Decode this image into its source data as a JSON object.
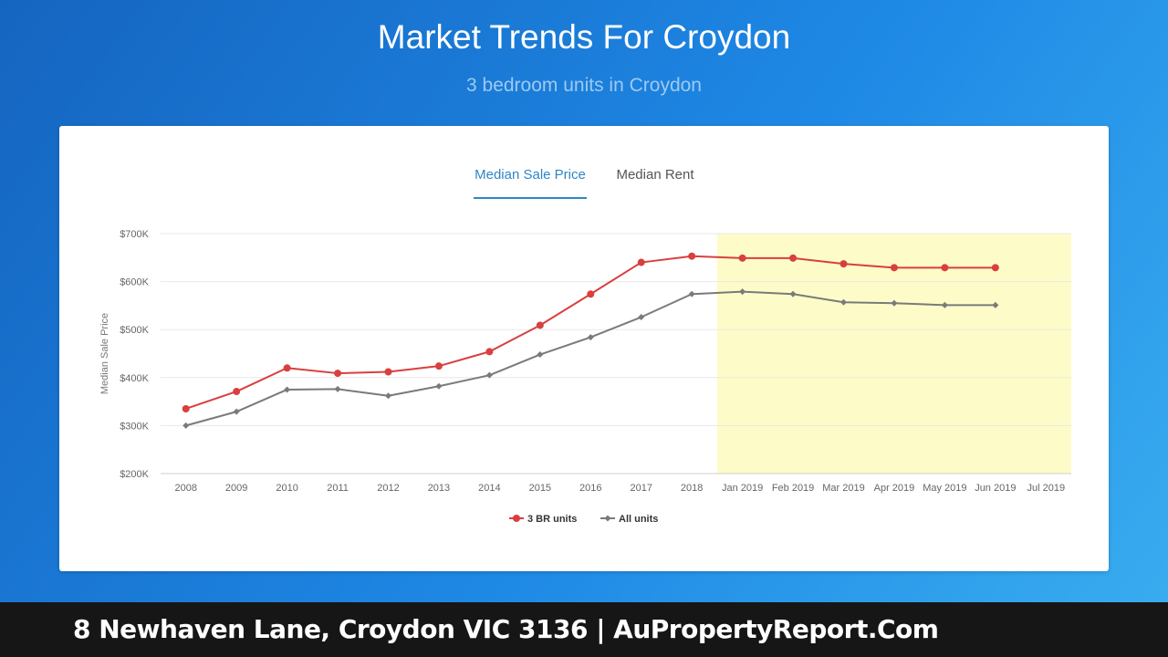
{
  "header": {
    "title": "Market Trends For Croydon",
    "subtitle": "3 bedroom units in Croydon"
  },
  "tabs": [
    {
      "label": "Median Sale Price",
      "active": true
    },
    {
      "label": "Median Rent",
      "active": false
    }
  ],
  "footer": {
    "text": "8 Newhaven Lane, Croydon VIC 3136 | AuPropertyReport.Com"
  },
  "colors": {
    "series_3br": "#d93f3f",
    "series_all": "#7a7a7a",
    "forecast_band": "#fdfcc8"
  },
  "chart_data": {
    "type": "line",
    "ylabel": "Median Sale Price",
    "xlabel": "",
    "ylim": [
      200000,
      700000
    ],
    "yticks": [
      {
        "value": 200000,
        "label": "$200K"
      },
      {
        "value": 300000,
        "label": "$300K"
      },
      {
        "value": 400000,
        "label": "$400K"
      },
      {
        "value": 500000,
        "label": "$500K"
      },
      {
        "value": 600000,
        "label": "$600K"
      },
      {
        "value": 700000,
        "label": "$700K"
      }
    ],
    "categories": [
      "2008",
      "2009",
      "2010",
      "2011",
      "2012",
      "2013",
      "2014",
      "2015",
      "2016",
      "2017",
      "2018",
      "Jan 2019",
      "Feb 2019",
      "Mar 2019",
      "Apr 2019",
      "May 2019",
      "Jun 2019",
      "Jul 2019"
    ],
    "highlight_range": [
      "Jan 2019",
      "Jul 2019"
    ],
    "grid": true,
    "legend": "bottom-center",
    "series": [
      {
        "name": "3 BR units",
        "marker": "circle",
        "values": [
          335000,
          371000,
          420000,
          409000,
          412000,
          424000,
          454000,
          509000,
          574000,
          640000,
          653000,
          649000,
          649000,
          637000,
          629000,
          629000,
          629000,
          null
        ]
      },
      {
        "name": "All units",
        "marker": "diamond",
        "values": [
          300000,
          329000,
          375000,
          376000,
          362000,
          382000,
          405000,
          448000,
          484000,
          526000,
          574000,
          579000,
          574000,
          557000,
          555000,
          551000,
          551000,
          null
        ]
      }
    ]
  }
}
